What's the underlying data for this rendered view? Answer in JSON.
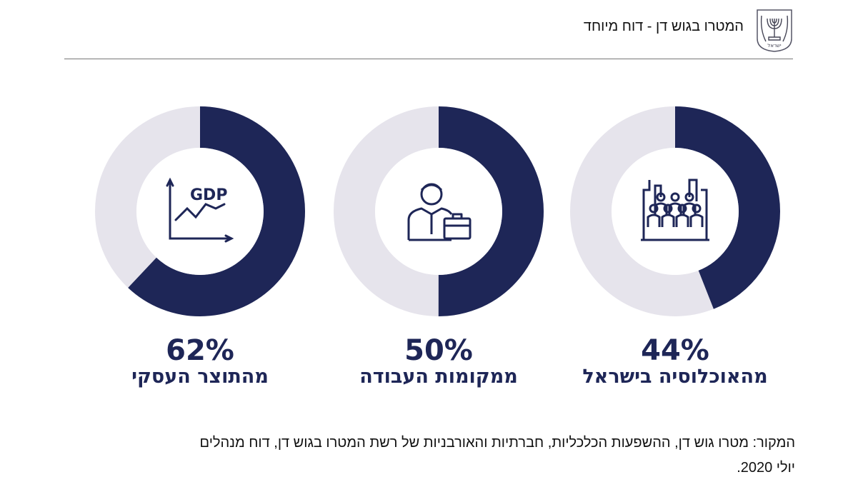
{
  "header": {
    "title": "המטרו בגוש דן - דוח מיוחד",
    "logo_text": "ישראל"
  },
  "colors": {
    "dark": "#1e2657",
    "light": "#e6e4ec"
  },
  "chart_data": {
    "type": "pie",
    "items": [
      {
        "value": 62,
        "label_value": "62%",
        "label": "מהתוצר העסקי",
        "icon": "gdp-chart-icon"
      },
      {
        "value": 50,
        "label_value": "50%",
        "label": "ממקומות העבודה",
        "icon": "businessman-briefcase-icon"
      },
      {
        "value": 44,
        "label_value": "44%",
        "label": "מהאוכלוסיה בישראל",
        "icon": "city-population-icon"
      }
    ],
    "gdp_icon_text": "GDP"
  },
  "source": {
    "line1": "המקור: מטרו גוש דן, ההשפעות הכלכליות, חברתיות והאורבניות של רשת המטרו בגוש דן, דוח מנהלים",
    "line2": "יולי 2020."
  }
}
